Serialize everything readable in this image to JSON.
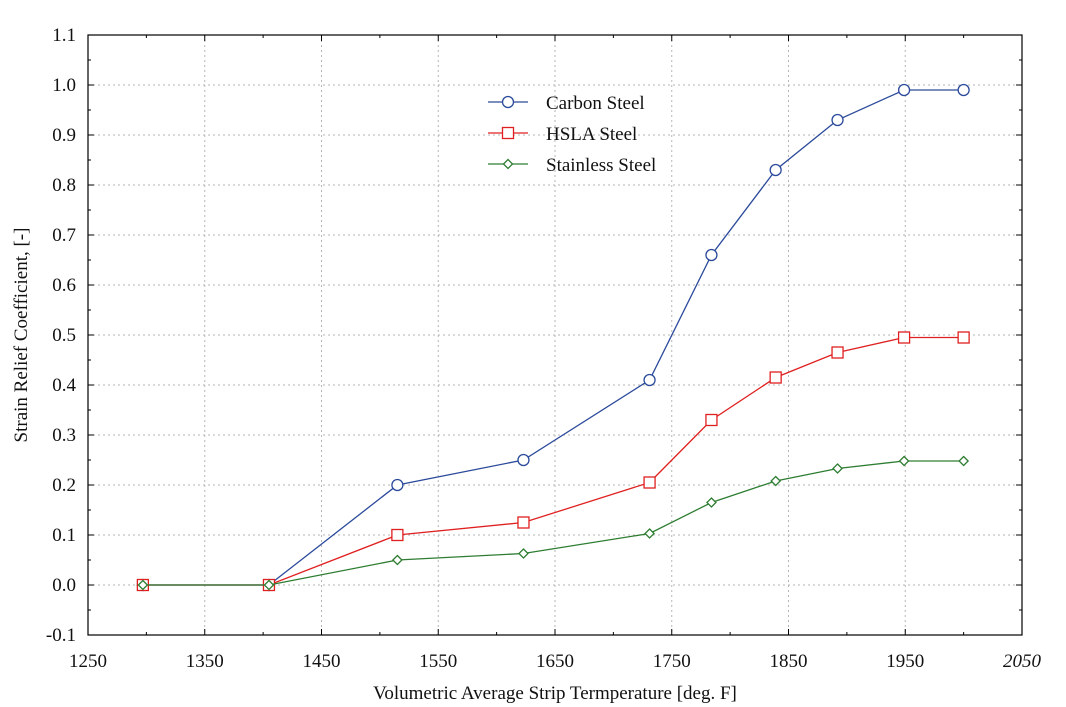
{
  "chart_data": {
    "type": "line",
    "title": "",
    "xlabel": "Volumetric Average Strip Termperature [deg. F]",
    "ylabel": "Strain Relief Coefficient, [-]",
    "xlim": [
      1250,
      2050
    ],
    "ylim": [
      -0.1,
      1.1
    ],
    "x_ticks": [
      1250,
      1350,
      1450,
      1550,
      1650,
      1750,
      1850,
      1950,
      2050
    ],
    "x_tick_labels": [
      "1250",
      "1350",
      "1450",
      "1550",
      "1650",
      "1750",
      "1850",
      "1950",
      "2050"
    ],
    "y_ticks": [
      -0.1,
      0.0,
      0.1,
      0.2,
      0.3,
      0.4,
      0.5,
      0.6,
      0.7,
      0.8,
      0.9,
      1.0,
      1.1
    ],
    "y_tick_labels": [
      "-0.1",
      "0.0",
      "0.1",
      "0.2",
      "0.3",
      "0.4",
      "0.5",
      "0.6",
      "0.7",
      "0.8",
      "0.9",
      "1.0",
      "1.1"
    ],
    "grid": true,
    "legend_position": "top-center",
    "x": [
      1297,
      1405,
      1515,
      1623,
      1731,
      1784,
      1839,
      1892,
      1949,
      2000
    ],
    "series": [
      {
        "name": "Carbon Steel",
        "color": "#2b4a9b",
        "marker": "circle",
        "values": [
          0.0,
          0.0,
          0.2,
          0.25,
          0.41,
          0.66,
          0.83,
          0.93,
          0.99,
          0.99
        ]
      },
      {
        "name": "HSLA Steel",
        "color": "#e02020",
        "marker": "square",
        "values": [
          0.0,
          0.0,
          0.1,
          0.125,
          0.205,
          0.33,
          0.415,
          0.465,
          0.495,
          0.495
        ]
      },
      {
        "name": "Stainless Steel",
        "color": "#2e7d32",
        "marker": "diamond",
        "values": [
          0.0,
          0.0,
          0.05,
          0.063,
          0.103,
          0.165,
          0.208,
          0.233,
          0.248,
          0.248
        ]
      }
    ]
  }
}
